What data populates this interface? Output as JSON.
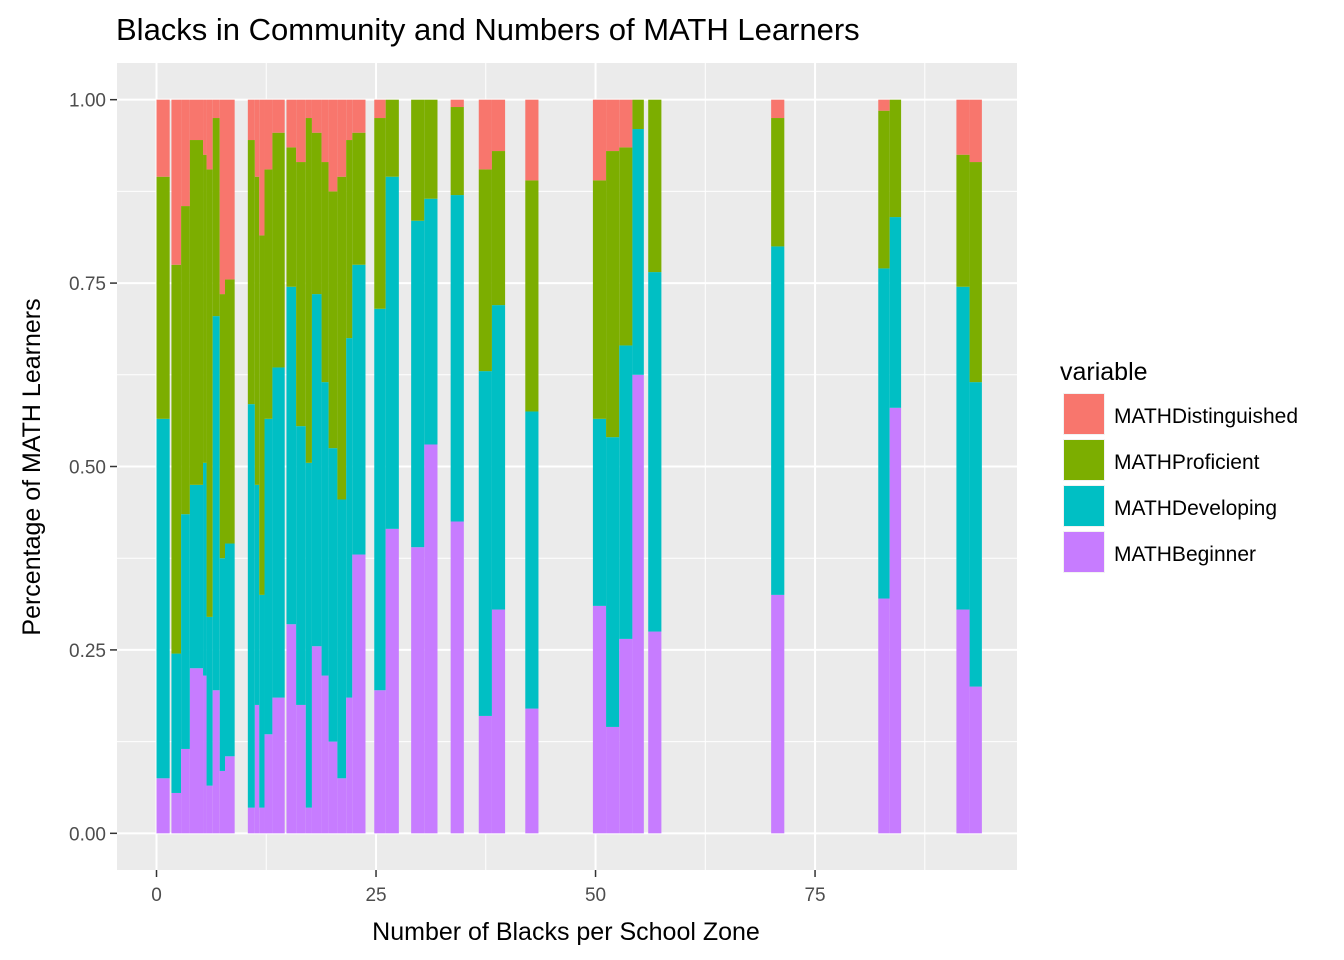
{
  "chart_data": {
    "type": "bar",
    "stacked": "fill",
    "title": "Blacks in Community and Numbers of MATH Learners",
    "xlabel": "Number of Blacks per School Zone",
    "ylabel": "Percentage of MATH Learners",
    "xlim": [
      -4.5,
      98
    ],
    "ylim": [
      -0.05,
      1.05
    ],
    "x_ticks": [
      0,
      25,
      50,
      75
    ],
    "x_tick_labels": [
      "0",
      "25",
      "50",
      "75"
    ],
    "y_ticks": [
      0,
      0.25,
      0.5,
      0.75,
      1
    ],
    "y_tick_labels": [
      "0.00",
      "0.25",
      "0.50",
      "0.75",
      "1.00"
    ],
    "grid": true,
    "legend": {
      "title": "variable",
      "position": "right",
      "entries": [
        "MATHDistinguished",
        "MATHProficient",
        "MATHDeveloping",
        "MATHBeginner"
      ]
    },
    "colors": {
      "MATHDistinguished": "#F8766D",
      "MATHProficient": "#7CAE00",
      "MATHDeveloping": "#00BFC4",
      "MATHBeginner": "#C77CFF"
    },
    "stack_order_bottom_to_top": [
      "MATHBeginner",
      "MATHDeveloping",
      "MATHProficient",
      "MATHDistinguished"
    ],
    "bars": [
      {
        "x0": 0,
        "x1": 1.5,
        "beginner": 0.075,
        "developing": 0.565,
        "proficient": 0.895
      },
      {
        "x0": 1.7,
        "x1": 2.8,
        "beginner": 0.055,
        "developing": 0.245,
        "proficient": 0.775
      },
      {
        "x0": 2.8,
        "x1": 3.8,
        "beginner": 0.115,
        "developing": 0.435,
        "proficient": 0.855
      },
      {
        "x0": 3.8,
        "x1": 5.3,
        "beginner": 0.225,
        "developing": 0.475,
        "proficient": 0.945
      },
      {
        "x0": 5.3,
        "x1": 5.7,
        "beginner": 0.215,
        "developing": 0.505,
        "proficient": 0.925
      },
      {
        "x0": 5.7,
        "x1": 6.4,
        "beginner": 0.065,
        "developing": 0.295,
        "proficient": 0.905
      },
      {
        "x0": 6.4,
        "x1": 7.2,
        "beginner": 0.195,
        "developing": 0.705,
        "proficient": 0.975
      },
      {
        "x0": 7.2,
        "x1": 7.8,
        "beginner": 0.085,
        "developing": 0.375,
        "proficient": 0.735
      },
      {
        "x0": 7.8,
        "x1": 8.9,
        "beginner": 0.105,
        "developing": 0.395,
        "proficient": 0.755
      },
      {
        "x0": 10.4,
        "x1": 11.2,
        "beginner": 0.035,
        "developing": 0.585,
        "proficient": 0.945
      },
      {
        "x0": 11.2,
        "x1": 11.7,
        "beginner": 0.175,
        "developing": 0.475,
        "proficient": 0.895
      },
      {
        "x0": 11.7,
        "x1": 12.3,
        "beginner": 0.035,
        "developing": 0.325,
        "proficient": 0.815
      },
      {
        "x0": 12.3,
        "x1": 13.2,
        "beginner": 0.135,
        "developing": 0.565,
        "proficient": 0.905
      },
      {
        "x0": 13.2,
        "x1": 14.6,
        "beginner": 0.185,
        "developing": 0.635,
        "proficient": 0.955
      },
      {
        "x0": 14.8,
        "x1": 15.9,
        "beginner": 0.285,
        "developing": 0.745,
        "proficient": 0.935
      },
      {
        "x0": 15.9,
        "x1": 17.0,
        "beginner": 0.175,
        "developing": 0.555,
        "proficient": 0.915
      },
      {
        "x0": 17.0,
        "x1": 17.7,
        "beginner": 0.035,
        "developing": 0.505,
        "proficient": 0.975
      },
      {
        "x0": 17.7,
        "x1": 18.8,
        "beginner": 0.255,
        "developing": 0.735,
        "proficient": 0.955
      },
      {
        "x0": 18.8,
        "x1": 19.6,
        "beginner": 0.215,
        "developing": 0.615,
        "proficient": 0.915
      },
      {
        "x0": 19.6,
        "x1": 20.6,
        "beginner": 0.125,
        "developing": 0.525,
        "proficient": 0.875
      },
      {
        "x0": 20.6,
        "x1": 21.6,
        "beginner": 0.075,
        "developing": 0.455,
        "proficient": 0.895
      },
      {
        "x0": 21.6,
        "x1": 22.3,
        "beginner": 0.185,
        "developing": 0.675,
        "proficient": 0.945
      },
      {
        "x0": 22.3,
        "x1": 23.8,
        "beginner": 0.38,
        "developing": 0.775,
        "proficient": 0.955
      },
      {
        "x0": 24.8,
        "x1": 26.1,
        "beginner": 0.195,
        "developing": 0.715,
        "proficient": 0.975
      },
      {
        "x0": 26.1,
        "x1": 27.6,
        "beginner": 0.415,
        "developing": 0.895,
        "proficient": 1.0
      },
      {
        "x0": 29.0,
        "x1": 30.5,
        "beginner": 0.39,
        "developing": 0.835,
        "proficient": 1.0
      },
      {
        "x0": 30.5,
        "x1": 32.0,
        "beginner": 0.53,
        "developing": 0.865,
        "proficient": 1.0
      },
      {
        "x0": 33.5,
        "x1": 35.0,
        "beginner": 0.425,
        "developing": 0.87,
        "proficient": 0.99
      },
      {
        "x0": 36.7,
        "x1": 38.2,
        "beginner": 0.16,
        "developing": 0.63,
        "proficient": 0.905
      },
      {
        "x0": 38.2,
        "x1": 39.7,
        "beginner": 0.305,
        "developing": 0.72,
        "proficient": 0.93
      },
      {
        "x0": 42.0,
        "x1": 43.5,
        "beginner": 0.17,
        "developing": 0.575,
        "proficient": 0.89
      },
      {
        "x0": 49.7,
        "x1": 51.2,
        "beginner": 0.31,
        "developing": 0.565,
        "proficient": 0.89
      },
      {
        "x0": 51.2,
        "x1": 52.7,
        "beginner": 0.145,
        "developing": 0.54,
        "proficient": 0.93
      },
      {
        "x0": 52.7,
        "x1": 54.2,
        "beginner": 0.265,
        "developing": 0.665,
        "proficient": 0.935
      },
      {
        "x0": 54.2,
        "x1": 55.5,
        "beginner": 0.625,
        "developing": 0.96,
        "proficient": 1.0
      },
      {
        "x0": 56.0,
        "x1": 57.5,
        "beginner": 0.275,
        "developing": 0.765,
        "proficient": 1.0
      },
      {
        "x0": 70.0,
        "x1": 71.5,
        "beginner": 0.325,
        "developing": 0.8,
        "proficient": 0.975
      },
      {
        "x0": 82.2,
        "x1": 83.5,
        "beginner": 0.32,
        "developing": 0.77,
        "proficient": 0.985
      },
      {
        "x0": 83.5,
        "x1": 84.8,
        "beginner": 0.58,
        "developing": 0.84,
        "proficient": 1.0
      },
      {
        "x0": 91.1,
        "x1": 92.6,
        "beginner": 0.305,
        "developing": 0.745,
        "proficient": 0.925
      },
      {
        "x0": 92.6,
        "x1": 94.0,
        "beginner": 0.2,
        "developing": 0.615,
        "proficient": 0.915
      }
    ]
  }
}
